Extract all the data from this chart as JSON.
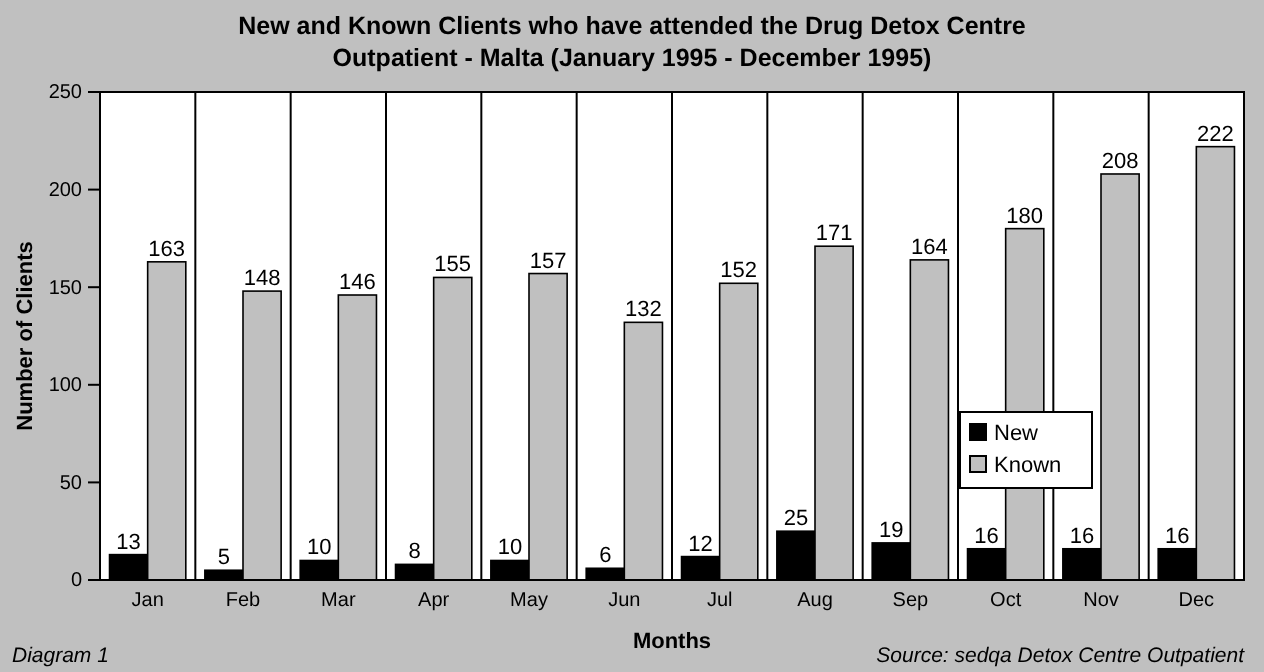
{
  "chart_data": {
    "type": "bar",
    "title": "New and Known Clients who have attended the Drug Detox Centre Outpatient - Malta (January 1995 - December 1995)",
    "xlabel": "Months",
    "ylabel": "Number of Clients",
    "categories": [
      "Jan",
      "Feb",
      "Mar",
      "Apr",
      "May",
      "Jun",
      "Jul",
      "Aug",
      "Sep",
      "Oct",
      "Nov",
      "Dec"
    ],
    "series": [
      {
        "name": "New",
        "color": "#000000",
        "values": [
          13,
          5,
          10,
          8,
          10,
          6,
          12,
          25,
          19,
          16,
          16,
          16
        ]
      },
      {
        "name": "Known",
        "color": "#c0c0c0",
        "values": [
          163,
          148,
          146,
          155,
          157,
          132,
          152,
          171,
          164,
          180,
          208,
          222
        ]
      }
    ],
    "ylim": [
      0,
      250
    ],
    "yticks": [
      0,
      50,
      100,
      150,
      200,
      250
    ],
    "grid": "x",
    "legend": "right",
    "data_labels": true,
    "annotations": [
      "Diagram 1",
      "Source: sedqa  Detox Centre Outpatient"
    ]
  }
}
